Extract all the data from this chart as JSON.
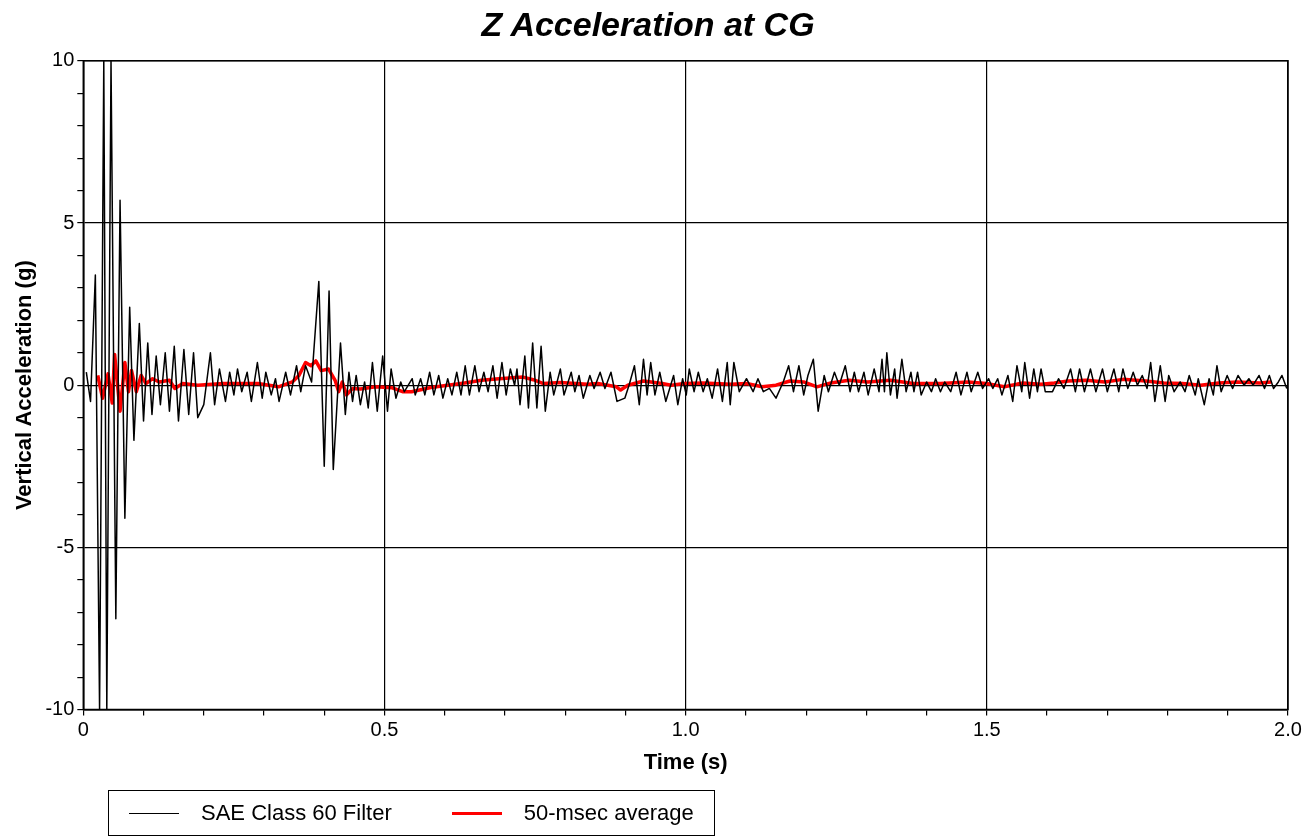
{
  "chart_data": {
    "type": "line",
    "title": "Z Acceleration at CG",
    "xlabel": "Time (s)",
    "ylabel": "Vertical Acceleration (g)",
    "xlim": [
      0,
      2
    ],
    "ylim": [
      -10,
      10
    ],
    "xticks": [
      0,
      {
        "value": 0.1,
        "label": null
      },
      {
        "value": 0.2,
        "label": null
      },
      {
        "value": 0.3,
        "label": null
      },
      {
        "value": 0.4,
        "label": null
      },
      0.5,
      {
        "value": 0.6,
        "label": null
      },
      {
        "value": 0.7,
        "label": null
      },
      {
        "value": 0.8,
        "label": null
      },
      {
        "value": 0.9,
        "label": null
      },
      {
        "value": 1,
        "label": "1.0"
      },
      {
        "value": 1.1,
        "label": null
      },
      {
        "value": 1.2,
        "label": null
      },
      {
        "value": 1.3,
        "label": null
      },
      {
        "value": 1.4,
        "label": null
      },
      1.5,
      {
        "value": 1.6,
        "label": null
      },
      {
        "value": 1.7,
        "label": null
      },
      {
        "value": 1.8,
        "label": null
      },
      {
        "value": 1.9,
        "label": null
      },
      {
        "value": 2,
        "label": "2.0"
      }
    ],
    "yticks": [
      -10,
      {
        "value": -9,
        "label": null
      },
      {
        "value": -8,
        "label": null
      },
      {
        "value": -7,
        "label": null
      },
      {
        "value": -6,
        "label": null
      },
      -5,
      {
        "value": -4,
        "label": null
      },
      {
        "value": -3,
        "label": null
      },
      {
        "value": -2,
        "label": null
      },
      {
        "value": -1,
        "label": null
      },
      0,
      {
        "value": 1,
        "label": null
      },
      {
        "value": 2,
        "label": null
      },
      {
        "value": 3,
        "label": null
      },
      {
        "value": 4,
        "label": null
      },
      5,
      {
        "value": 6,
        "label": null
      },
      {
        "value": 7,
        "label": null
      },
      {
        "value": 8,
        "label": null
      },
      {
        "value": 9,
        "label": null
      },
      10
    ],
    "grid": true,
    "legend": "bottom",
    "marker": "none",
    "line_style": "solid",
    "series": [
      {
        "name": "SAE Class 60 Filter",
        "color": "#000000",
        "x": [
          0.005,
          0.012,
          0.02,
          0.027,
          0.034,
          0.039,
          0.046,
          0.054,
          0.061,
          0.069,
          0.077,
          0.084,
          0.093,
          0.1,
          0.107,
          0.114,
          0.121,
          0.128,
          0.136,
          0.143,
          0.151,
          0.158,
          0.167,
          0.175,
          0.183,
          0.19,
          0.2,
          0.211,
          0.218,
          0.226,
          0.236,
          0.243,
          0.25,
          0.256,
          0.263,
          0.272,
          0.279,
          0.289,
          0.297,
          0.303,
          0.312,
          0.319,
          0.325,
          0.336,
          0.344,
          0.354,
          0.361,
          0.369,
          0.379,
          0.391,
          0.4,
          0.408,
          0.415,
          0.427,
          0.435,
          0.441,
          0.447,
          0.453,
          0.46,
          0.467,
          0.473,
          0.48,
          0.488,
          0.497,
          0.505,
          0.511,
          0.519,
          0.527,
          0.533,
          0.546,
          0.551,
          0.56,
          0.567,
          0.575,
          0.582,
          0.59,
          0.597,
          0.605,
          0.612,
          0.62,
          0.627,
          0.634,
          0.641,
          0.65,
          0.657,
          0.665,
          0.672,
          0.68,
          0.687,
          0.695,
          0.702,
          0.709,
          0.716,
          0.72,
          0.725,
          0.733,
          0.739,
          0.746,
          0.753,
          0.76,
          0.767,
          0.775,
          0.781,
          0.792,
          0.798,
          0.81,
          0.816,
          0.823,
          0.83,
          0.841,
          0.848,
          0.858,
          0.866,
          0.876,
          0.886,
          0.899,
          0.906,
          0.915,
          0.923,
          0.93,
          0.936,
          0.942,
          0.949,
          0.957,
          0.967,
          0.98,
          0.987,
          0.995,
          1.001,
          1.006,
          1.014,
          1.021,
          1.029,
          1.036,
          1.044,
          1.053,
          1.061,
          1.069,
          1.074,
          1.08,
          1.089,
          1.101,
          1.112,
          1.12,
          1.129,
          1.139,
          1.15,
          1.162,
          1.171,
          1.179,
          1.188,
          1.196,
          1.203,
          1.212,
          1.22,
          1.23,
          1.237,
          1.247,
          1.255,
          1.265,
          1.273,
          1.28,
          1.287,
          1.296,
          1.303,
          1.313,
          1.321,
          1.326,
          1.33,
          1.334,
          1.34,
          1.347,
          1.351,
          1.359,
          1.366,
          1.374,
          1.379,
          1.385,
          1.391,
          1.4,
          1.408,
          1.415,
          1.423,
          1.43,
          1.44,
          1.449,
          1.457,
          1.467,
          1.474,
          1.485,
          1.493,
          1.503,
          1.51,
          1.518,
          1.525,
          1.535,
          1.543,
          1.55,
          1.558,
          1.563,
          1.571,
          1.578,
          1.584,
          1.59,
          1.597,
          1.609,
          1.619,
          1.628,
          1.639,
          1.647,
          1.654,
          1.662,
          1.672,
          1.681,
          1.692,
          1.7,
          1.711,
          1.719,
          1.726,
          1.734,
          1.743,
          1.75,
          1.758,
          1.766,
          1.772,
          1.779,
          1.788,
          1.796,
          1.802,
          1.811,
          1.821,
          1.829,
          1.836,
          1.846,
          1.851,
          1.861,
          1.869,
          1.876,
          1.882,
          1.889,
          1.899,
          1.908,
          1.917,
          1.927,
          1.935,
          1.942,
          1.952,
          1.961,
          1.969,
          1.976,
          1.984,
          1.99,
          1.998
        ],
        "values": [
          0.4,
          -0.5,
          3.4,
          -10,
          10,
          -10,
          10,
          -7.2,
          5.7,
          -4.1,
          2.4,
          -1.7,
          1.9,
          -1.1,
          1.3,
          -0.9,
          0.9,
          -0.6,
          1.0,
          -0.8,
          1.2,
          -1.1,
          1.1,
          -0.9,
          1.0,
          -1.0,
          -0.6,
          1.0,
          -0.6,
          0.5,
          -0.5,
          0.4,
          -0.3,
          0.5,
          -0.2,
          0.4,
          -0.5,
          0.7,
          -0.4,
          0.4,
          -0.3,
          0.2,
          -0.5,
          0.4,
          -0.3,
          0.6,
          -0.2,
          0.6,
          0.1,
          3.2,
          -2.5,
          2.9,
          -2.6,
          1.3,
          -0.9,
          0.4,
          -0.5,
          0.3,
          -0.6,
          0.1,
          -0.7,
          0.7,
          -0.8,
          0.9,
          -0.8,
          0.5,
          -0.4,
          0.1,
          -0.2,
          0.2,
          -0.3,
          0.2,
          -0.3,
          0.4,
          -0.3,
          0.3,
          -0.4,
          0.2,
          -0.3,
          0.4,
          -0.3,
          0.6,
          -0.3,
          0.6,
          -0.2,
          0.4,
          -0.2,
          0.6,
          -0.4,
          0.7,
          -0.3,
          0.5,
          0.0,
          0.5,
          -0.6,
          0.9,
          -0.7,
          1.3,
          -0.7,
          1.2,
          -0.8,
          0.4,
          -0.3,
          0.5,
          -0.3,
          0.4,
          -0.2,
          0.3,
          -0.4,
          0.3,
          -0.1,
          0.4,
          -0.1,
          0.4,
          -0.5,
          -0.4,
          0.0,
          0.6,
          -0.6,
          0.8,
          -0.3,
          0.7,
          -0.3,
          0.4,
          -0.5,
          0.3,
          -0.6,
          0.2,
          -0.3,
          0.5,
          -0.2,
          0.4,
          -0.2,
          0.2,
          -0.4,
          0.5,
          -0.5,
          0.7,
          -0.6,
          0.7,
          -0.2,
          0.2,
          -0.2,
          0.2,
          -0.2,
          -0.1,
          -0.4,
          0.1,
          0.6,
          -0.2,
          0.6,
          -0.3,
          0.3,
          0.8,
          -0.8,
          0.3,
          -0.2,
          0.4,
          0.0,
          0.6,
          -0.2,
          0.4,
          -0.2,
          0.4,
          -0.3,
          0.5,
          -0.2,
          0.8,
          -0.2,
          1.0,
          -0.3,
          0.5,
          -0.4,
          0.8,
          -0.2,
          0.4,
          -0.2,
          0.4,
          -0.3,
          0.1,
          -0.2,
          0.2,
          -0.2,
          0.1,
          -0.2,
          0.4,
          -0.3,
          0.4,
          -0.2,
          0.4,
          -0.1,
          0.2,
          -0.1,
          0.2,
          -0.3,
          0.3,
          -0.5,
          0.6,
          -0.2,
          0.7,
          -0.4,
          0.5,
          -0.2,
          0.5,
          -0.2,
          -0.2,
          0.2,
          -0.1,
          0.5,
          -0.2,
          0.5,
          -0.2,
          0.5,
          -0.2,
          0.5,
          -0.2,
          0.5,
          -0.2,
          0.5,
          -0.1,
          0.4,
          0.0,
          0.3,
          -0.1,
          0.7,
          -0.5,
          0.6,
          -0.5,
          0.3,
          -0.2,
          0.1,
          -0.2,
          0.3,
          -0.3,
          0.2,
          -0.6,
          0.2,
          -0.3,
          0.6,
          -0.2,
          0.3,
          -0.1,
          0.3,
          0.0,
          0.2,
          0.0,
          0.3,
          -0.1,
          0.3,
          -0.1,
          0.1,
          0.3,
          -0.1
        ]
      },
      {
        "name": "50-msec average",
        "color": "#ff0000",
        "x": [
          0.024,
          0.032,
          0.041,
          0.048,
          0.052,
          0.061,
          0.069,
          0.075,
          0.08,
          0.088,
          0.096,
          0.104,
          0.115,
          0.126,
          0.143,
          0.152,
          0.165,
          0.19,
          0.232,
          0.29,
          0.324,
          0.347,
          0.358,
          0.369,
          0.378,
          0.386,
          0.395,
          0.407,
          0.418,
          0.424,
          0.43,
          0.437,
          0.447,
          0.46,
          0.485,
          0.513,
          0.53,
          0.545,
          0.577,
          0.605,
          0.633,
          0.661,
          0.69,
          0.73,
          0.747,
          0.764,
          0.792,
          0.837,
          0.854,
          0.885,
          0.892,
          0.904,
          0.93,
          0.961,
          0.976,
          0.998,
          1.029,
          1.075,
          1.101,
          1.127,
          1.15,
          1.173,
          1.196,
          1.218,
          1.241,
          1.271,
          1.302,
          1.34,
          1.378,
          1.423,
          1.469,
          1.499,
          1.529,
          1.56,
          1.59,
          1.612,
          1.635,
          1.665,
          1.696,
          1.726,
          1.764,
          1.794,
          1.825,
          1.855,
          1.885,
          1.916,
          1.953,
          1.972
        ],
        "values": [
          0.3,
          -0.4,
          0.35,
          -0.55,
          0.95,
          -0.8,
          0.7,
          -0.2,
          0.45,
          -0.2,
          0.3,
          0.05,
          0.2,
          0.1,
          0.15,
          -0.1,
          0.05,
          0.0,
          0.05,
          0.05,
          -0.05,
          0.1,
          0.3,
          0.7,
          0.6,
          0.75,
          0.45,
          0.5,
          0.15,
          -0.2,
          0.1,
          -0.3,
          -0.1,
          -0.12,
          -0.05,
          -0.08,
          -0.2,
          -0.2,
          -0.07,
          0.0,
          0.07,
          0.15,
          0.2,
          0.25,
          0.17,
          0.05,
          0.08,
          0.03,
          0.05,
          -0.05,
          -0.15,
          0.0,
          0.13,
          0.05,
          0.0,
          0.05,
          0.07,
          0.03,
          0.05,
          -0.05,
          0.0,
          0.13,
          0.1,
          -0.05,
          0.07,
          0.15,
          0.1,
          0.15,
          0.05,
          0.05,
          0.1,
          0.05,
          -0.05,
          0.07,
          0.03,
          0.07,
          0.13,
          0.15,
          0.1,
          0.18,
          0.13,
          0.07,
          0.05,
          0.0,
          0.07,
          0.1,
          0.07,
          0.1
        ]
      }
    ]
  }
}
